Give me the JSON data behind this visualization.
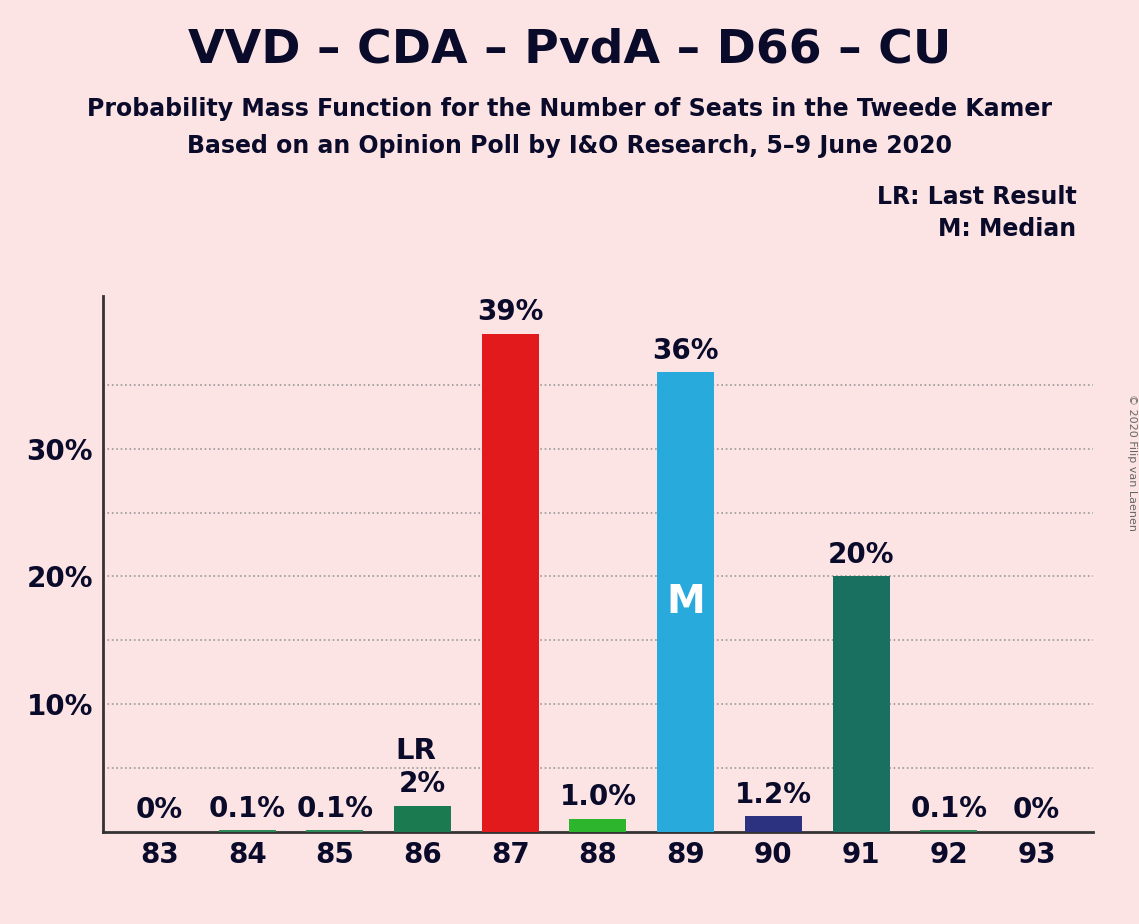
{
  "title": "VVD – CDA – PvdA – D66 – CU",
  "subtitle1": "Probability Mass Function for the Number of Seats in the Tweede Kamer",
  "subtitle2": "Based on an Opinion Poll by I&O Research, 5–9 June 2020",
  "copyright": "© 2020 Filip van Laenen",
  "legend_lr": "LR: Last Result",
  "legend_m": "M: Median",
  "background_color": "#fce4e4",
  "categories": [
    83,
    84,
    85,
    86,
    87,
    88,
    89,
    90,
    91,
    92,
    93
  ],
  "values": [
    0.0,
    0.1,
    0.1,
    2.0,
    39.0,
    1.0,
    36.0,
    1.2,
    20.0,
    0.1,
    0.0
  ],
  "labels": [
    "0%",
    "0.1%",
    "0.1%",
    "2%",
    "39%",
    "1.0%",
    "36%",
    "1.2%",
    "20%",
    "0.1%",
    "0%"
  ],
  "bar_colors": [
    "#2e8b57",
    "#2e8b57",
    "#2e8b57",
    "#1b7a50",
    "#e31a1c",
    "#2db52d",
    "#29aadd",
    "#2d3280",
    "#1a7060",
    "#2e8b57",
    "#2e8b57"
  ],
  "lr_seat": 86,
  "median_seat": 89,
  "ylim": [
    0,
    42
  ],
  "yticks": [
    10,
    20,
    30
  ],
  "ylabel_fontsize": 20,
  "title_fontsize": 34,
  "subtitle_fontsize": 17,
  "bar_label_fontsize": 20,
  "lr_label": "LR",
  "m_label": "M",
  "bar_width": 0.65
}
